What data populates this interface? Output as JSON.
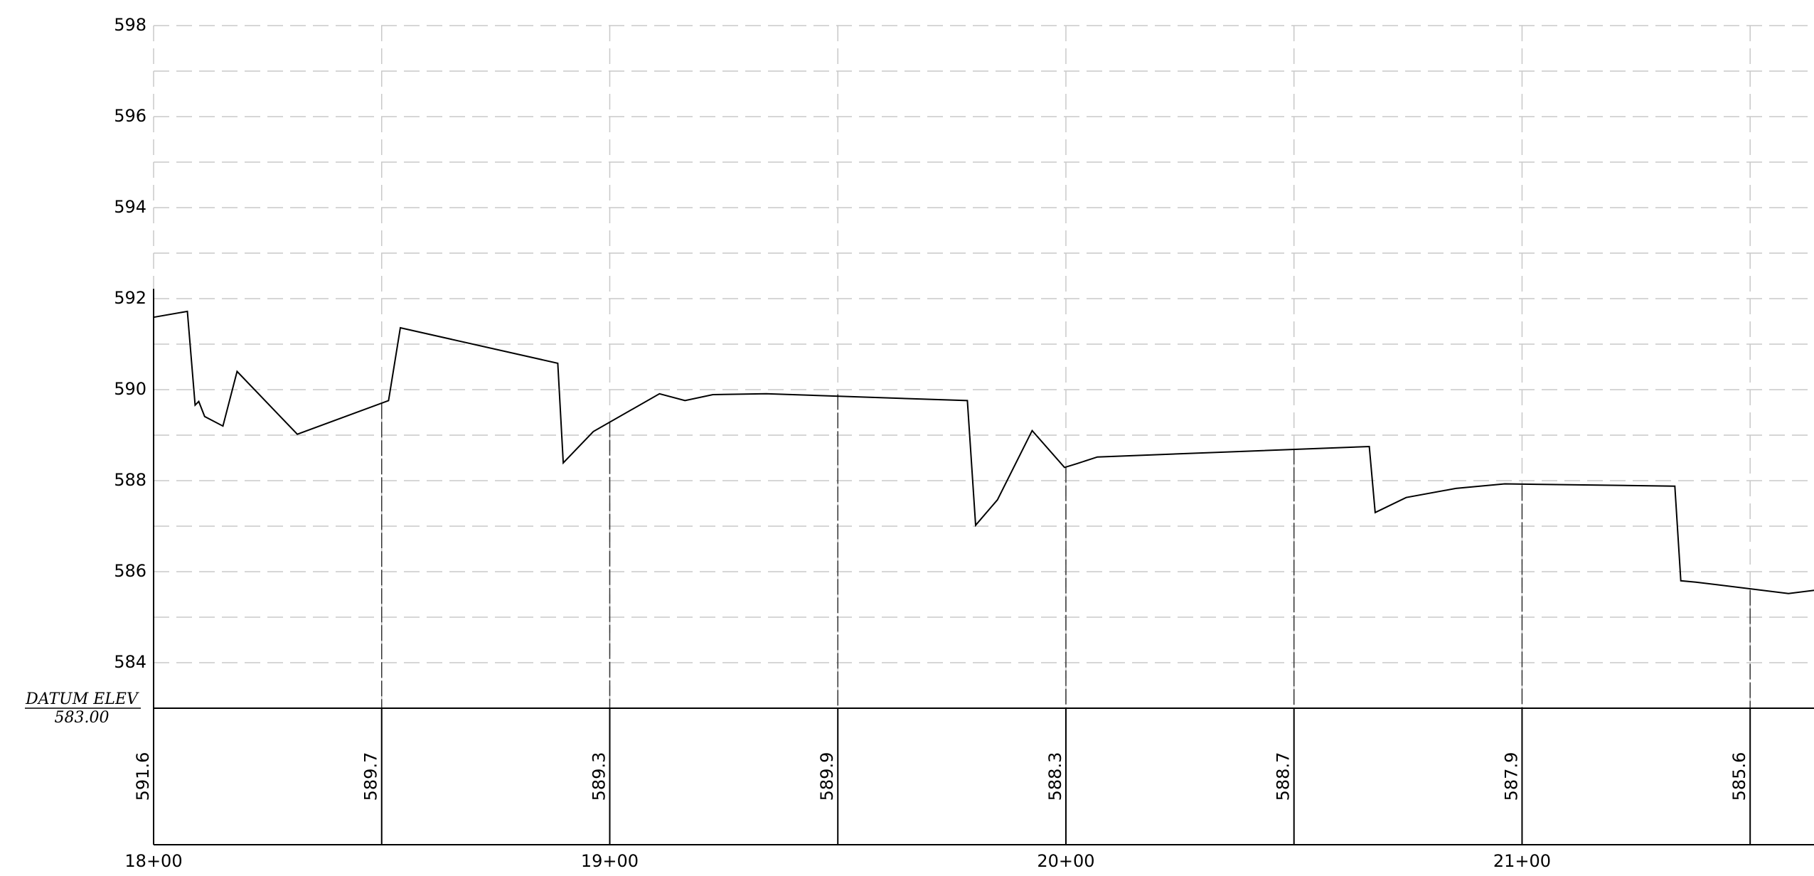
{
  "chart_data": {
    "type": "line",
    "xlim": [
      1800,
      2164
    ],
    "ylim": [
      583,
      598
    ],
    "xticks": [
      {
        "value": 1800,
        "label": "18+00"
      },
      {
        "value": 1900,
        "label": "19+00"
      },
      {
        "value": 2000,
        "label": "20+00"
      },
      {
        "value": 2100,
        "label": "21+00"
      }
    ],
    "yticks": [
      584,
      586,
      588,
      590,
      592,
      594,
      596,
      598
    ],
    "yminor": [
      585,
      587,
      589,
      591,
      593,
      595,
      597
    ],
    "grid": true,
    "datum": {
      "label": "DATUM ELEV",
      "value": 583,
      "value_label": "583.00"
    },
    "stations": [
      1800,
      1850,
      1900,
      1950,
      2000,
      2050,
      2100,
      2150
    ],
    "station_elevations": [
      591.6,
      589.7,
      589.3,
      589.9,
      588.3,
      588.7,
      587.9,
      585.6
    ],
    "series": [
      {
        "color": "#000000",
        "x": [
          1800,
          1807.4,
          1809.1,
          1809.9,
          1811.2,
          1815.2,
          1818.3,
          1831.5,
          1851.5,
          1854.1,
          1888.6,
          1889.8,
          1896.4,
          1910.9,
          1916.5,
          1922.6,
          1934.3,
          1978.4,
          1980.2,
          1985.0,
          1992.6,
          1999.7,
          2002.3,
          2006.9,
          2066.5,
          2067.8,
          2074.6,
          2085.5,
          2096.2,
          2133.5,
          2134.8,
          2138.1,
          2158.4,
          2164
        ],
        "values": [
          591.59,
          591.72,
          589.66,
          589.74,
          589.41,
          589.2,
          590.4,
          589.02,
          589.76,
          591.36,
          590.58,
          588.39,
          589.08,
          589.91,
          589.76,
          589.89,
          589.91,
          589.76,
          587.02,
          587.58,
          589.1,
          588.29,
          588.37,
          588.52,
          588.75,
          587.3,
          587.63,
          587.83,
          587.93,
          587.88,
          585.8,
          585.77,
          585.52,
          585.59
        ]
      }
    ]
  }
}
